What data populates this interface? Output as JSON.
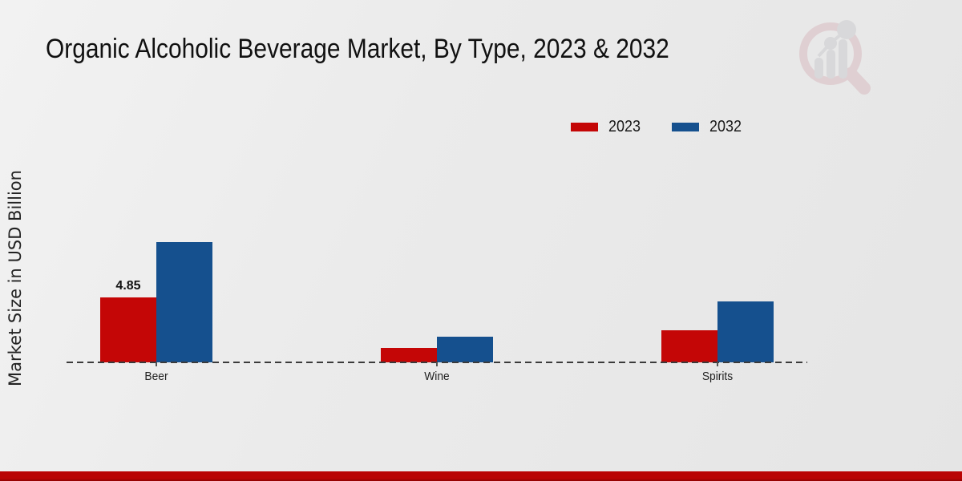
{
  "page": {
    "title": "Organic Alcoholic Beverage Market, By Type, 2023 & 2032",
    "ylabel": "Market Size in USD Billion",
    "watermark_icon": "magnifier-bar-chart-logo",
    "footer_band_color": "#b90404"
  },
  "legend": {
    "position": "top-right",
    "items": [
      {
        "label": "2023",
        "color": "#c40606"
      },
      {
        "label": "2032",
        "color": "#15508e"
      }
    ]
  },
  "chart_data": {
    "type": "bar",
    "title": "Organic Alcoholic Beverage Market, By Type, 2023 & 2032",
    "categories": [
      "Beer",
      "Wine",
      "Spirits"
    ],
    "series": [
      {
        "name": "2023",
        "color": "#c40606",
        "values": [
          4.85,
          1.05,
          2.4
        ]
      },
      {
        "name": "2032",
        "color": "#15508e",
        "values": [
          9.0,
          1.9,
          4.55
        ]
      }
    ],
    "xlabel": "",
    "ylabel": "Market Size in USD Billion",
    "ylim": [
      0,
      10
    ],
    "grid": false,
    "baseline_style": "dashed",
    "legend_position": "top-right",
    "annotations": [
      {
        "series": "2023",
        "category": "Beer",
        "text": "4.85"
      }
    ]
  }
}
